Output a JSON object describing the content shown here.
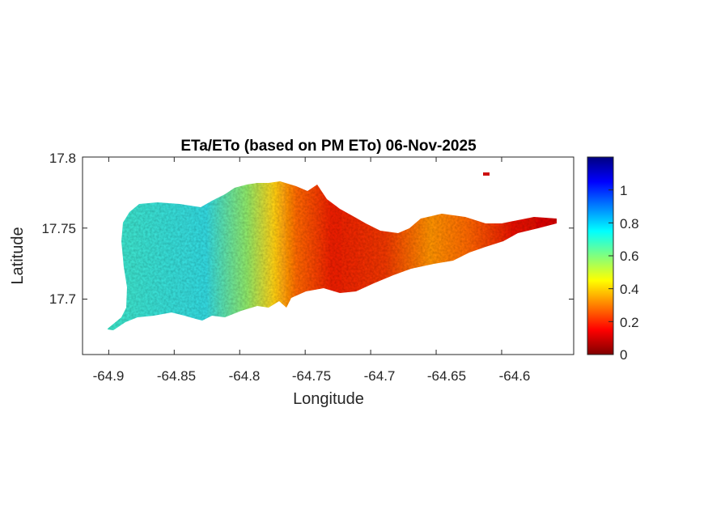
{
  "chart_data": {
    "type": "heatmap",
    "title": "ETa/ETo (based on PM ETo) 06-Nov-2025",
    "xlabel": "Longitude",
    "ylabel": "Latitude",
    "xlim": [
      -64.92,
      -64.545
    ],
    "ylim": [
      17.661,
      17.8
    ],
    "xticks": [
      -64.9,
      -64.85,
      -64.8,
      -64.75,
      -64.7,
      -64.65,
      -64.6
    ],
    "xtick_labels": [
      "-64.9",
      "-64.85",
      "-64.8",
      "-64.75",
      "-64.7",
      "-64.65",
      "-64.6"
    ],
    "yticks": [
      17.7,
      17.75,
      17.8
    ],
    "ytick_labels": [
      "17.7",
      "17.75",
      "17.8"
    ],
    "colormap": "jet",
    "clim": [
      0,
      1.2
    ],
    "colorbar_ticks": [
      0,
      0.2,
      0.4,
      0.6,
      0.8,
      1
    ],
    "colorbar_tick_labels": [
      "0",
      "0.2",
      "0.4",
      "0.6",
      "0.8",
      "1"
    ],
    "grid": false,
    "regions": [
      {
        "area": "west",
        "approx_value": 0.7
      },
      {
        "area": "west-central transition",
        "approx_value": 0.5
      },
      {
        "area": "central",
        "approx_value": 0.15
      },
      {
        "area": "east-central",
        "approx_value": 0.3
      },
      {
        "area": "east",
        "approx_value": 0.15
      }
    ]
  }
}
